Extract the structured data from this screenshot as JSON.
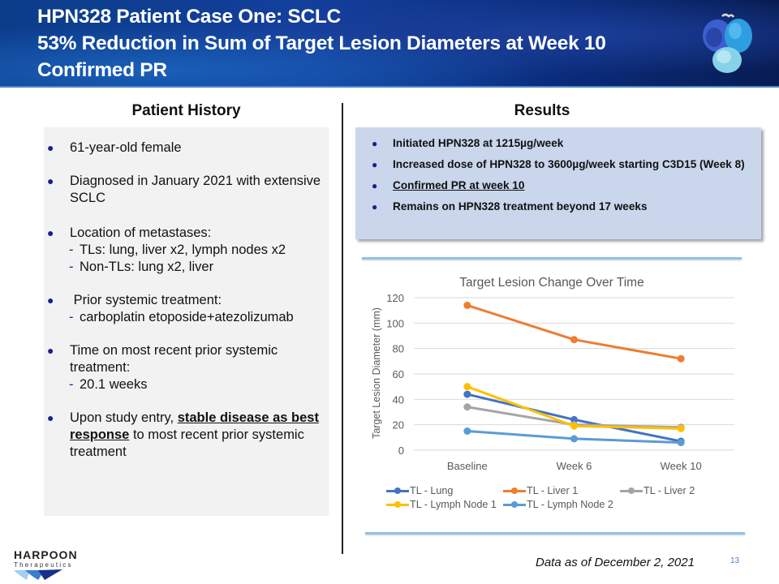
{
  "header": {
    "title_lines": [
      "HPN328 Patient Case One: SCLC",
      "53% Reduction in Sum of Target Lesion Diameters at Week 10",
      "Confirmed PR"
    ],
    "image_icon": "protein-structure-icon"
  },
  "patient_history": {
    "heading": "Patient History",
    "items": [
      {
        "text": "61-year-old female",
        "subs": []
      },
      {
        "text": "Diagnosed in January 2021 with extensive SCLC",
        "subs": []
      },
      {
        "text": "Location of metastases:",
        "subs": [
          "TLs: lung, liver x2, lymph nodes x2",
          "Non-TLs:  lung x2, liver"
        ]
      },
      {
        "text": " Prior systemic treatment:",
        "subs": [
          "carboplatin etoposide+atezolizumab"
        ]
      },
      {
        "text": "Time on most recent prior systemic treatment:",
        "subs": [
          "20.1 weeks"
        ]
      },
      {
        "text_pre": "Upon study entry, ",
        "text_emph": "stable disease as best response",
        "text_post": " to most recent prior systemic treatment",
        "subs": []
      }
    ]
  },
  "results": {
    "heading": "Results",
    "items": [
      {
        "text": "Initiated HPN328 at 1215µg/week",
        "underline": false
      },
      {
        "text": "Increased dose of HPN328 to 3600µg/week starting C3D15 (Week 8)",
        "underline": false
      },
      {
        "text": "Confirmed PR at week 10",
        "underline": true
      },
      {
        "text": "Remains on HPN328 treatment beyond 17 weeks",
        "underline": false
      }
    ]
  },
  "chart_data": {
    "type": "line",
    "title": "Target Lesion Change Over Time",
    "xlabel": "",
    "ylabel": "Target Lesion Diameter (mm)",
    "categories": [
      "Baseline",
      "Week 6",
      "Week 10"
    ],
    "ylim": [
      0,
      120
    ],
    "yticks": [
      0,
      20,
      40,
      60,
      80,
      100,
      120
    ],
    "grid": true,
    "legend_position": "bottom",
    "series": [
      {
        "name": "TL - Lung",
        "color": "#4472c4",
        "values": [
          44,
          24,
          7
        ]
      },
      {
        "name": "TL - Liver 1",
        "color": "#ed7d31",
        "values": [
          114,
          87,
          72
        ]
      },
      {
        "name": "TL - Liver 2",
        "color": "#a5a5a5",
        "values": [
          34,
          20,
          18
        ]
      },
      {
        "name": "TL - Lymph Node 1",
        "color": "#ffc000",
        "values": [
          50,
          19,
          17
        ]
      },
      {
        "name": "TL - Lymph Node 2",
        "color": "#5b9bd5",
        "values": [
          15,
          9,
          6
        ]
      }
    ]
  },
  "footer": {
    "logo_name": "HARPOON",
    "logo_sub": "Therapeutics",
    "data_note": "Data as of December 2, 2021",
    "page_number": "13"
  }
}
